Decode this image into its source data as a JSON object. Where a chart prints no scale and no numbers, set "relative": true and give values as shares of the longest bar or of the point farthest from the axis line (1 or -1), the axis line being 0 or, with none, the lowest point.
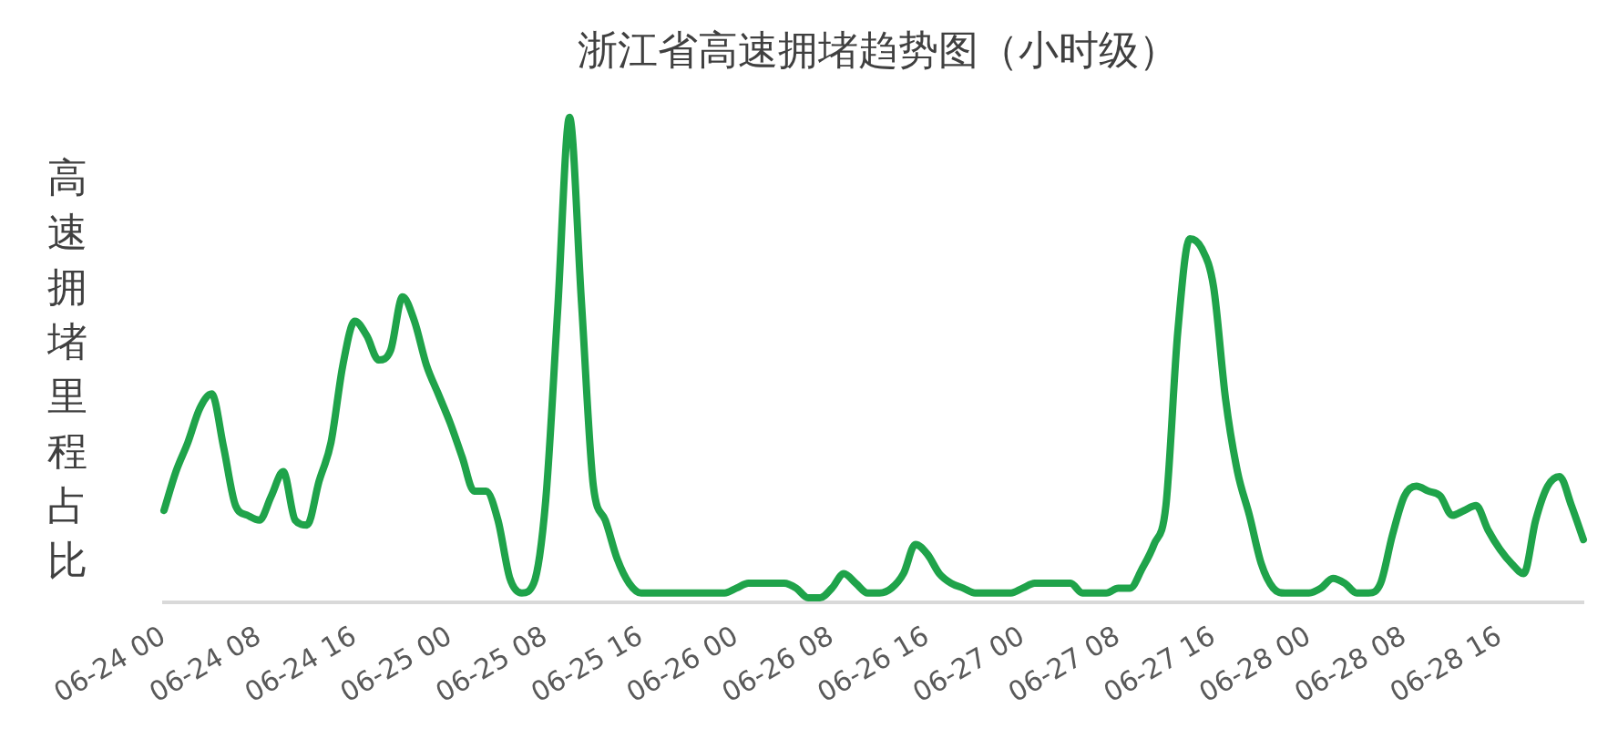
{
  "chart_data": {
    "type": "line",
    "title": "浙江省高速拥堵趋势图（小时级）",
    "ylabel": "高速拥堵里程占比",
    "relative": true,
    "grid": false,
    "legend": false,
    "marker": "none",
    "line_style": "solid",
    "categories": [
      "06-24 00",
      null,
      null,
      null,
      null,
      null,
      null,
      null,
      "06-24 08",
      null,
      null,
      null,
      null,
      null,
      null,
      null,
      "06-24 16",
      null,
      null,
      null,
      null,
      null,
      null,
      null,
      "06-25 00",
      null,
      null,
      null,
      null,
      null,
      null,
      null,
      "06-25 08",
      null,
      null,
      null,
      null,
      null,
      null,
      null,
      "06-25 16",
      null,
      null,
      null,
      null,
      null,
      null,
      null,
      "06-26 00",
      null,
      null,
      null,
      null,
      null,
      null,
      null,
      "06-26 08",
      null,
      null,
      null,
      null,
      null,
      null,
      null,
      "06-26 16",
      null,
      null,
      null,
      null,
      null,
      null,
      null,
      "06-27 00",
      null,
      null,
      null,
      null,
      null,
      null,
      null,
      "06-27 08",
      null,
      null,
      null,
      null,
      null,
      null,
      null,
      "06-27 16",
      null,
      null,
      null,
      null,
      null,
      null,
      null,
      "06-28 00",
      null,
      null,
      null,
      null,
      null,
      null,
      null,
      "06-28 08",
      null,
      null,
      null,
      null,
      null,
      null,
      null,
      "06-28 16",
      null,
      null,
      null,
      null,
      null,
      null,
      null
    ],
    "series": [
      {
        "color": "#1fa34a",
        "values": [
          0.19,
          0.27,
          0.33,
          0.4,
          0.43,
          0.32,
          0.2,
          0.18,
          0.17,
          0.22,
          0.27,
          0.17,
          0.16,
          0.25,
          0.33,
          0.49,
          0.58,
          0.55,
          0.5,
          0.52,
          0.63,
          0.58,
          0.49,
          0.43,
          0.37,
          0.3,
          0.23,
          0.23,
          0.17,
          0.05,
          0.02,
          0.04,
          0.21,
          0.6,
          1,
          0.62,
          0.24,
          0.17,
          0.09,
          0.04,
          0.02,
          0.02,
          0.02,
          0.02,
          0.02,
          0.02,
          0.02,
          0.02,
          0.03,
          0.04,
          0.04,
          0.04,
          0.04,
          0.03,
          0.01,
          0.01,
          0.03,
          0.06,
          0.04,
          0.02,
          0.02,
          0.03,
          0.06,
          0.12,
          0.1,
          0.06,
          0.04,
          0.03,
          0.02,
          0.02,
          0.02,
          0.02,
          0.03,
          0.04,
          0.04,
          0.04,
          0.04,
          0.02,
          0.02,
          0.02,
          0.03,
          0.03,
          0.07,
          0.12,
          0.2,
          0.56,
          0.75,
          0.73,
          0.65,
          0.42,
          0.27,
          0.18,
          0.08,
          0.03,
          0.02,
          0.02,
          0.02,
          0.03,
          0.05,
          0.04,
          0.02,
          0.02,
          0.04,
          0.14,
          0.22,
          0.24,
          0.23,
          0.22,
          0.18,
          0.19,
          0.2,
          0.15,
          0.11,
          0.08,
          0.06,
          0.17,
          0.24,
          0.26,
          0.2,
          0.13
        ]
      }
    ]
  }
}
